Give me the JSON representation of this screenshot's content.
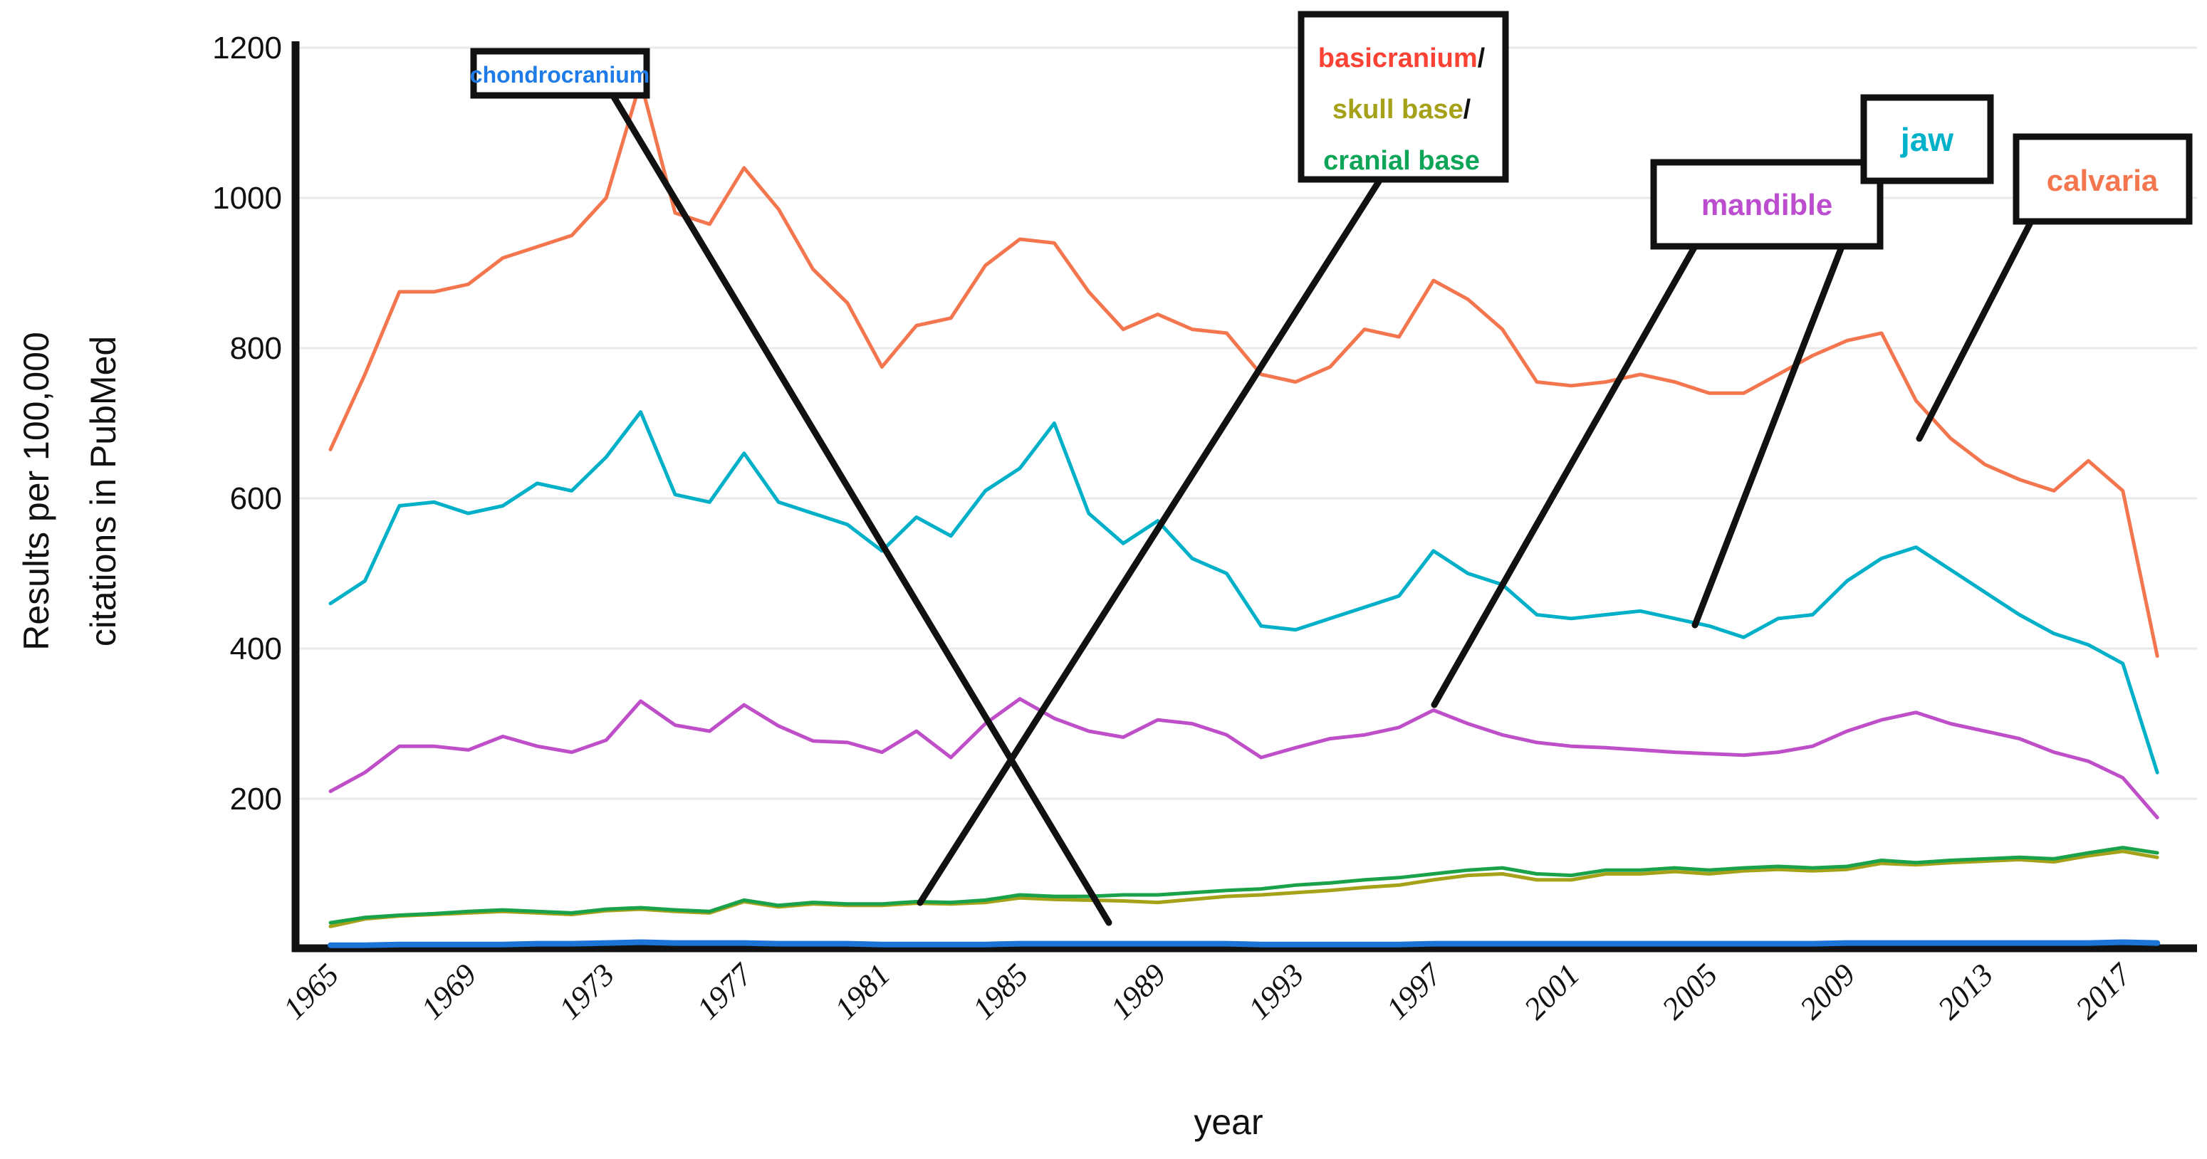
{
  "figure": {
    "x_axis_title": "year",
    "y_axis_title_line1": "Results per 100,000",
    "y_axis_title_line2": "citations in PubMed"
  },
  "callouts": {
    "slash": "/",
    "chondrocranium": {
      "text": "chondrocranium",
      "color": "#1E7BE8"
    },
    "basicranium": {
      "text": "basicranium",
      "color": "#FB4234"
    },
    "skull_base": {
      "text": "skull base",
      "color": "#A5A119"
    },
    "cranial_base": {
      "text": "cranial base",
      "color": "#0EA558"
    },
    "mandible": {
      "text": "mandible",
      "color": "#BB4DCE"
    },
    "jaw": {
      "text": "jaw",
      "color": "#00B2C9"
    },
    "calvaria": {
      "text": "calvaria",
      "color": "#F4764E"
    }
  },
  "chart_data": {
    "type": "line",
    "title": "",
    "xlabel": "year",
    "ylabel": "Results per 100,000 citations in PubMed",
    "xlim": [
      1964.5,
      2019.5
    ],
    "ylim": [
      0,
      1260
    ],
    "grid": "horizontal-only",
    "legend_position": "callout-boxes-with-leader-lines",
    "x_ticks": [
      1965,
      1969,
      1973,
      1977,
      1981,
      1985,
      1989,
      1993,
      1997,
      2001,
      2005,
      2009,
      2013,
      2017
    ],
    "y_ticks": [
      200,
      400,
      600,
      800,
      1000,
      1200
    ],
    "years": [
      1965,
      1966,
      1967,
      1968,
      1969,
      1970,
      1971,
      1972,
      1973,
      1974,
      1975,
      1976,
      1977,
      1978,
      1979,
      1980,
      1981,
      1982,
      1983,
      1984,
      1985,
      1986,
      1987,
      1988,
      1989,
      1990,
      1991,
      1992,
      1993,
      1994,
      1995,
      1996,
      1997,
      1998,
      1999,
      2000,
      2001,
      2002,
      2003,
      2004,
      2005,
      2006,
      2007,
      2008,
      2009,
      2010,
      2011,
      2012,
      2013,
      2014,
      2015,
      2016,
      2017,
      2018
    ],
    "series": [
      {
        "name": "calvaria",
        "color": "#F4764E",
        "width": 5,
        "values": [
          665,
          765,
          875,
          875,
          885,
          920,
          935,
          950,
          1000,
          1155,
          980,
          965,
          1040,
          985,
          905,
          860,
          775,
          830,
          840,
          910,
          945,
          940,
          875,
          825,
          845,
          825,
          820,
          765,
          755,
          775,
          825,
          815,
          890,
          865,
          825,
          755,
          750,
          755,
          765,
          755,
          740,
          740,
          765,
          790,
          810,
          820,
          730,
          680,
          645,
          625,
          610,
          650,
          610,
          390
        ]
      },
      {
        "name": "jaw",
        "color": "#00AFC8",
        "width": 5,
        "values": [
          460,
          490,
          590,
          595,
          580,
          590,
          620,
          610,
          655,
          715,
          605,
          595,
          660,
          595,
          580,
          565,
          530,
          575,
          550,
          610,
          640,
          700,
          580,
          540,
          570,
          520,
          500,
          430,
          425,
          440,
          455,
          470,
          530,
          500,
          485,
          445,
          440,
          445,
          450,
          440,
          430,
          415,
          440,
          445,
          490,
          520,
          535,
          505,
          475,
          445,
          420,
          405,
          380,
          235
        ]
      },
      {
        "name": "mandible",
        "color": "#BF4FC9",
        "width": 5,
        "values": [
          210,
          235,
          270,
          270,
          265,
          283,
          270,
          262,
          278,
          330,
          298,
          290,
          325,
          297,
          277,
          275,
          262,
          290,
          255,
          300,
          333,
          307,
          290,
          282,
          305,
          300,
          285,
          255,
          268,
          280,
          285,
          295,
          318,
          300,
          285,
          275,
          270,
          268,
          265,
          262,
          260,
          258,
          262,
          270,
          290,
          305,
          315,
          300,
          290,
          280,
          262,
          250,
          228,
          175
        ]
      },
      {
        "name": "skull base",
        "color": "#A5A119",
        "width": 5,
        "values": [
          30,
          40,
          44,
          46,
          48,
          50,
          48,
          46,
          51,
          53,
          50,
          48,
          63,
          56,
          60,
          58,
          58,
          61,
          60,
          62,
          68,
          66,
          65,
          64,
          62,
          66,
          70,
          72,
          75,
          78,
          82,
          85,
          92,
          98,
          100,
          92,
          92,
          100,
          100,
          103,
          100,
          104,
          106,
          104,
          106,
          114,
          112,
          115,
          117,
          119,
          116,
          124,
          130,
          122
        ]
      },
      {
        "name": "cranial base",
        "color": "#19A24A",
        "width": 5,
        "values": [
          35,
          42,
          45,
          47,
          50,
          52,
          50,
          48,
          53,
          55,
          52,
          50,
          65,
          58,
          62,
          60,
          60,
          63,
          62,
          65,
          72,
          70,
          70,
          72,
          72,
          75,
          78,
          80,
          85,
          88,
          92,
          95,
          100,
          105,
          108,
          100,
          98,
          105,
          105,
          108,
          105,
          108,
          110,
          108,
          110,
          118,
          115,
          118,
          120,
          122,
          120,
          128,
          135,
          128
        ]
      },
      {
        "name": "chondrocranium",
        "color": "#1B74D6",
        "width": 8,
        "values": [
          5,
          5,
          6,
          6,
          6,
          6,
          7,
          7,
          8,
          9,
          8,
          8,
          8,
          7,
          7,
          7,
          6,
          6,
          6,
          6,
          7,
          7,
          7,
          7,
          7,
          7,
          7,
          6,
          6,
          6,
          6,
          6,
          7,
          7,
          7,
          7,
          7,
          7,
          7,
          7,
          7,
          7,
          7,
          7,
          8,
          8,
          8,
          8,
          8,
          8,
          8,
          8,
          9,
          8
        ]
      }
    ]
  }
}
